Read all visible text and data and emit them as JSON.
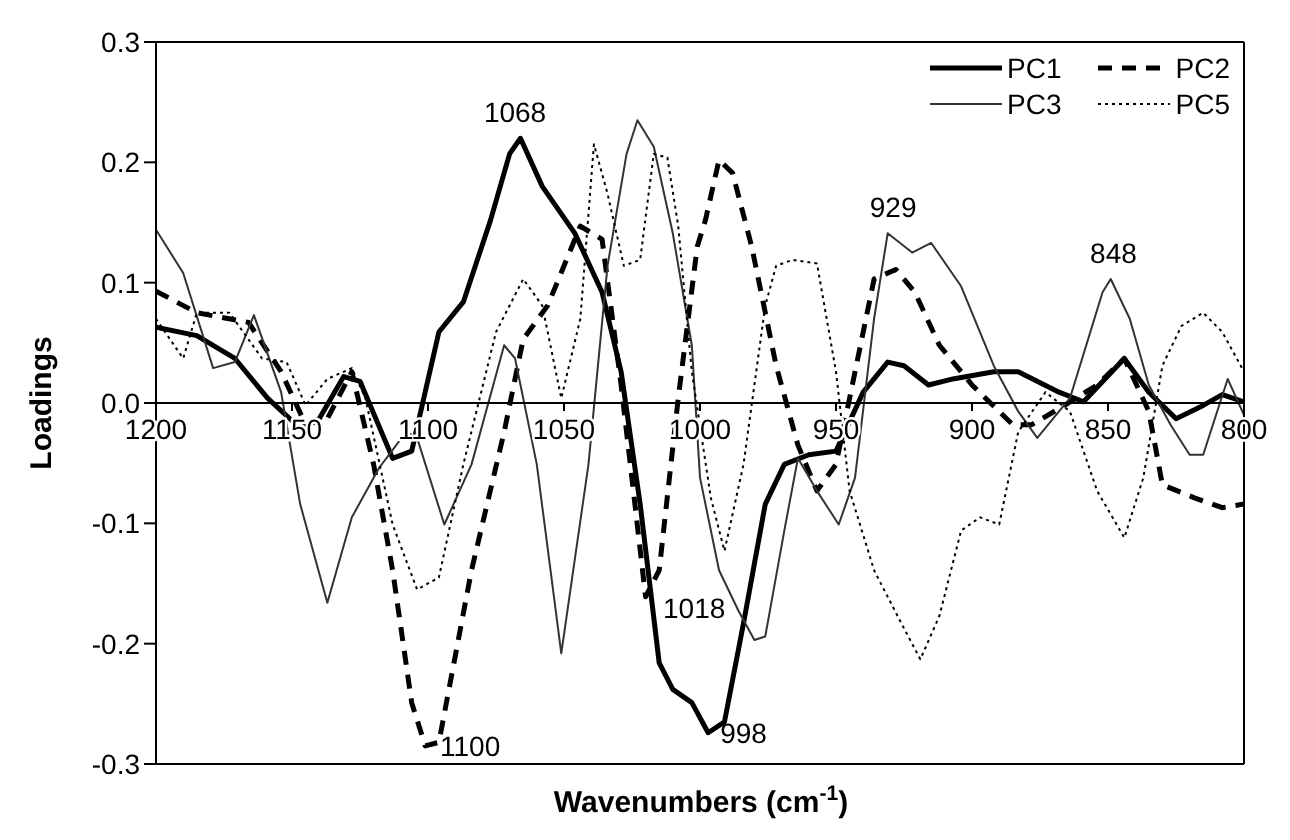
{
  "chart_data": {
    "type": "line",
    "xlabel": "Wavenumbers (cm$^{-1}$)",
    "ylabel": "Loadings",
    "xlim": [
      1200,
      800
    ],
    "xticks": [
      1200,
      1150,
      1100,
      1050,
      1000,
      950,
      900,
      850,
      800
    ],
    "ylim": [
      -0.3,
      0.3
    ],
    "yticks": [
      -0.3,
      -0.2,
      -0.1,
      {
        "value": 0,
        "label": "0.0"
      },
      0.1,
      0.2,
      0.3
    ],
    "grid": false,
    "legend": "top right",
    "marker": "none",
    "series": [
      {
        "name": "PC1",
        "color": "#000000",
        "line_style": "solid",
        "x": [
          1200,
          1185,
          1171,
          1159,
          1147,
          1140,
          1131,
          1125,
          1113,
          1106,
          1096,
          1087,
          1077,
          1070,
          1066,
          1058,
          1046,
          1036,
          1029,
          1022,
          1015,
          1010,
          1003,
          997,
          991,
          984,
          976,
          969,
          960,
          950,
          940,
          931,
          925,
          916,
          907,
          892,
          883,
          868,
          859,
          844,
          835,
          825,
          815,
          808,
          800
        ],
        "values": [
          0.063,
          0.056,
          0.037,
          0.004,
          -0.021,
          -0.013,
          0.022,
          0.018,
          -0.046,
          -0.04,
          0.059,
          0.084,
          0.152,
          0.207,
          0.22,
          0.18,
          0.141,
          0.092,
          0.026,
          -0.084,
          -0.216,
          -0.238,
          -0.249,
          -0.274,
          -0.265,
          -0.183,
          -0.084,
          -0.051,
          -0.043,
          -0.04,
          0.009,
          0.034,
          0.031,
          0.015,
          0.02,
          0.026,
          0.026,
          0.009,
          0.001,
          0.037,
          0.009,
          -0.013,
          -0.002,
          0.007,
          0.001
        ]
      },
      {
        "name": "PC2",
        "color": "#000000",
        "line_style": "dashed",
        "x": [
          1200,
          1185,
          1166,
          1154,
          1145,
          1137,
          1128,
          1120,
          1113,
          1106,
          1101,
          1096,
          1084,
          1072,
          1065,
          1056,
          1044,
          1036,
          1029,
          1020,
          1015,
          1008,
          1001,
          998,
          993,
          988,
          981,
          972,
          964,
          957,
          950,
          943,
          936,
          928,
          921,
          912,
          900,
          885,
          878,
          866,
          854,
          844,
          835,
          830,
          818,
          808,
          800
        ],
        "values": [
          0.093,
          0.075,
          0.067,
          0.026,
          -0.018,
          -0.013,
          0.026,
          -0.051,
          -0.139,
          -0.249,
          -0.285,
          -0.282,
          -0.139,
          -0.024,
          0.053,
          0.081,
          0.147,
          0.136,
          0.015,
          -0.161,
          -0.139,
          0.004,
          0.13,
          0.152,
          0.202,
          0.191,
          0.13,
          0.031,
          -0.035,
          -0.073,
          -0.051,
          0.026,
          0.103,
          0.111,
          0.092,
          0.048,
          0.015,
          -0.018,
          -0.018,
          -0.002,
          0.015,
          0.037,
          -0.007,
          -0.068,
          -0.079,
          -0.087,
          -0.084
        ]
      },
      {
        "name": "PC3",
        "color": "#333333",
        "line_style": "solid",
        "x": [
          1200,
          1190,
          1179,
          1171,
          1164,
          1154,
          1147,
          1137,
          1128,
          1118,
          1108,
          1104,
          1094,
          1084,
          1072,
          1068,
          1060,
          1051,
          1041,
          1034,
          1027,
          1023,
          1017,
          1010,
          1003,
          1000,
          993,
          986,
          980,
          976,
          969,
          964,
          957,
          949,
          943,
          936,
          931,
          922,
          915,
          904,
          892,
          883,
          876,
          864,
          852,
          849,
          842,
          835,
          827,
          820,
          815,
          806,
          800
        ],
        "values": [
          0.144,
          0.108,
          0.029,
          0.034,
          0.073,
          0.009,
          -0.084,
          -0.166,
          -0.095,
          -0.054,
          -0.024,
          -0.029,
          -0.101,
          -0.051,
          0.048,
          0.037,
          -0.051,
          -0.208,
          -0.051,
          0.114,
          0.207,
          0.235,
          0.213,
          0.141,
          0.048,
          -0.062,
          -0.139,
          -0.172,
          -0.197,
          -0.194,
          -0.106,
          -0.046,
          -0.073,
          -0.101,
          -0.062,
          0.07,
          0.141,
          0.125,
          0.133,
          0.097,
          0.031,
          -0.007,
          -0.029,
          0.004,
          0.092,
          0.103,
          0.07,
          0.015,
          -0.018,
          -0.043,
          -0.043,
          0.02,
          -0.01
        ]
      },
      {
        "name": "PC5",
        "color": "#000000",
        "line_style": "dotted",
        "x": [
          1200,
          1190,
          1185,
          1173,
          1161,
          1152,
          1145,
          1137,
          1128,
          1123,
          1113,
          1104,
          1096,
          1087,
          1075,
          1065,
          1058,
          1051,
          1044,
          1039,
          1034,
          1028,
          1022,
          1017,
          1012,
          1008,
          1003,
          996,
          991,
          984,
          976,
          972,
          966,
          957,
          950,
          945,
          936,
          926,
          919,
          912,
          904,
          897,
          890,
          883,
          873,
          864,
          854,
          844,
          837,
          830,
          823,
          815,
          808,
          800
        ],
        "values": [
          0.07,
          0.037,
          0.075,
          0.075,
          0.037,
          0.034,
          -0.002,
          0.02,
          0.029,
          0.004,
          -0.101,
          -0.155,
          -0.145,
          -0.051,
          0.059,
          0.103,
          0.081,
          0.004,
          0.07,
          0.215,
          0.174,
          0.114,
          0.119,
          0.207,
          0.204,
          0.147,
          0.026,
          -0.079,
          -0.123,
          -0.051,
          0.081,
          0.114,
          0.119,
          0.116,
          0.026,
          -0.073,
          -0.139,
          -0.183,
          -0.213,
          -0.177,
          -0.106,
          -0.095,
          -0.101,
          -0.024,
          0.009,
          -0.007,
          -0.073,
          -0.112,
          -0.062,
          0.031,
          0.064,
          0.075,
          0.059,
          0.026
        ]
      }
    ],
    "annotations": [
      {
        "text": "1068",
        "x": 1068,
        "y": 0.22
      },
      {
        "text": "1100",
        "x": 1100,
        "y": -0.285
      },
      {
        "text": "1018",
        "x": 1018,
        "y": -0.17
      },
      {
        "text": "998",
        "x": 997,
        "y": -0.274
      },
      {
        "text": "929",
        "x": 929,
        "y": 0.141
      },
      {
        "text": "848",
        "x": 848,
        "y": 0.103
      }
    ]
  }
}
